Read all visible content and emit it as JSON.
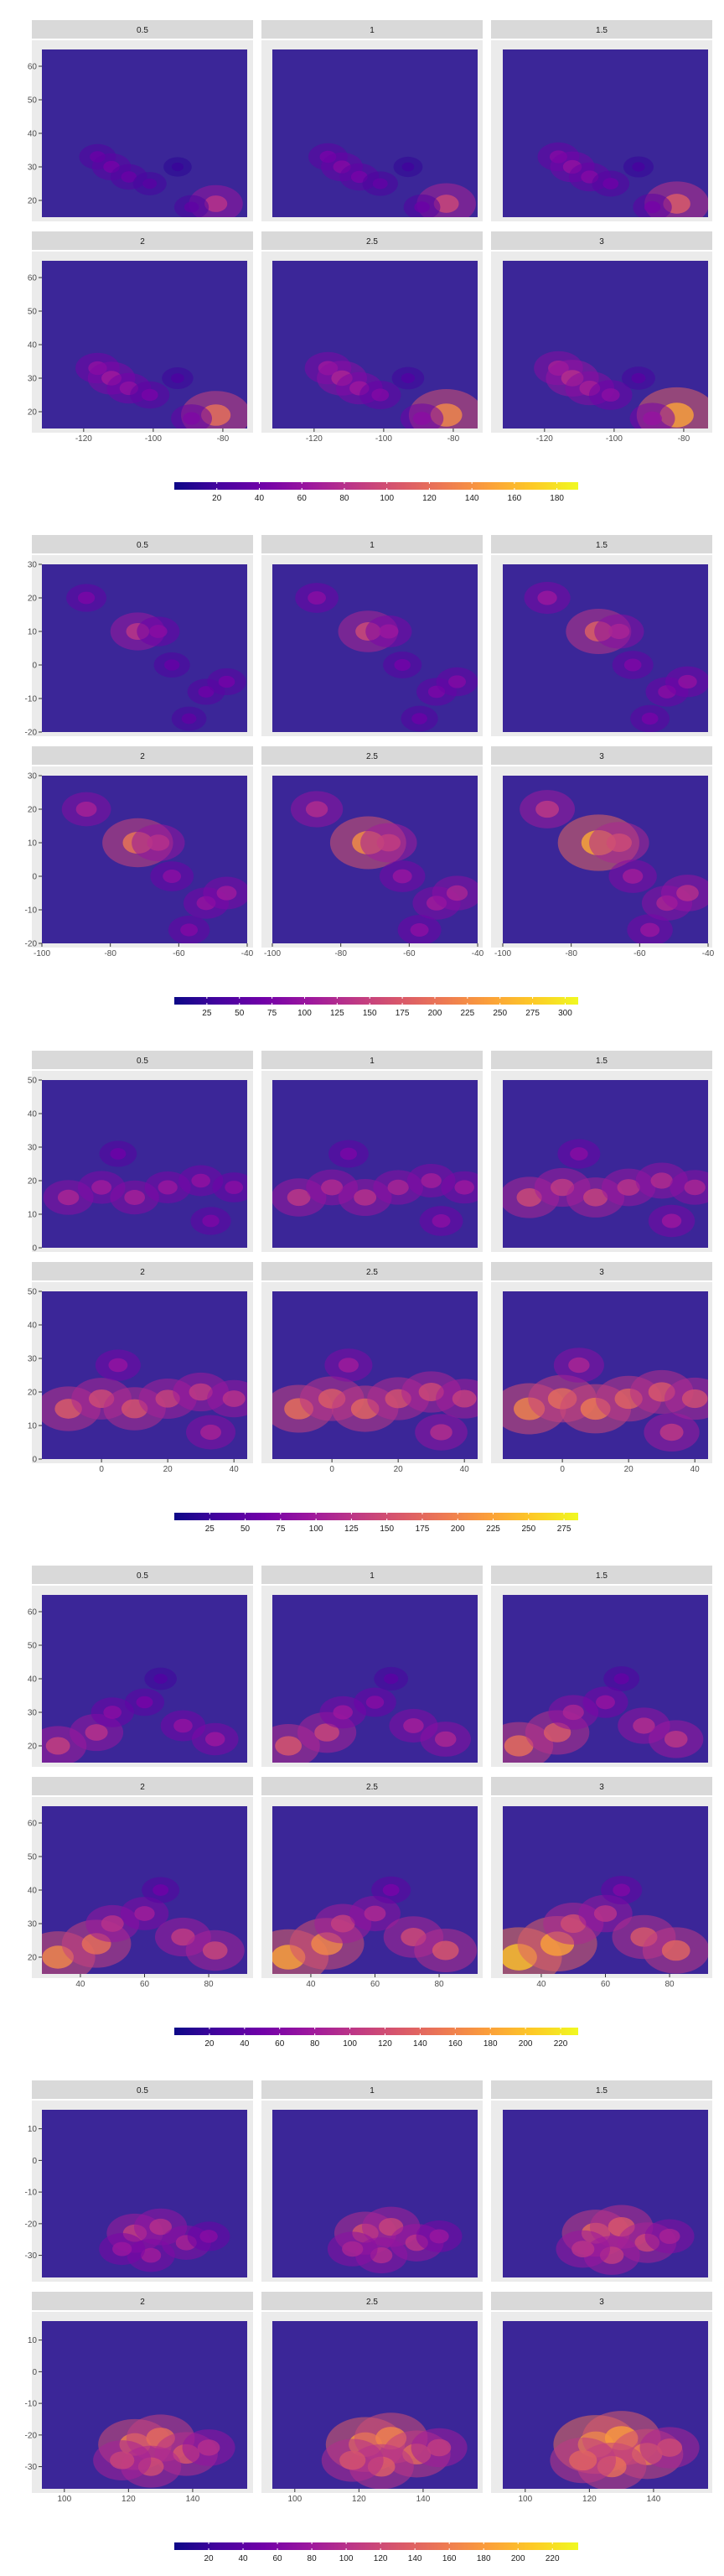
{
  "colors": {
    "panel_background": "#ebebeb",
    "strip_background": "#d9d9d9",
    "gridline": "#ffffff",
    "low": "#3b2698",
    "colorscale": [
      "#0d0887",
      "#46039f",
      "#7201a8",
      "#9c179e",
      "#bd3786",
      "#d8576b",
      "#ed7953",
      "#fb9f3a",
      "#fdca26",
      "#f0f921"
    ]
  },
  "chart_data": [
    {
      "type": "heatmap",
      "region_panel_labels": [
        "0.5",
        "1",
        "1.5",
        "2",
        "2.5",
        "3"
      ],
      "x_ticks": [
        -120,
        -100,
        -80
      ],
      "y_ticks": [
        20,
        30,
        40,
        50,
        60
      ],
      "xlim": [
        -132,
        -73
      ],
      "ylim": [
        15,
        65
      ],
      "colorbar_ticks": [
        "20",
        "40",
        "60",
        "80",
        "100",
        "120",
        "140",
        "160",
        "180"
      ],
      "value_range": [
        0,
        190
      ],
      "hotspots": [
        {
          "lon": -116,
          "lat": 33,
          "value": 70
        },
        {
          "lon": -112,
          "lat": 30,
          "value": 80
        },
        {
          "lon": -107,
          "lat": 27,
          "value": 70
        },
        {
          "lon": -101,
          "lat": 25,
          "value": 55
        },
        {
          "lon": -93,
          "lat": 30,
          "value": 30
        },
        {
          "lon": -82,
          "lat": 19,
          "value": 150
        },
        {
          "lon": -89,
          "lat": 18,
          "value": 60
        }
      ]
    },
    {
      "type": "heatmap",
      "region_panel_labels": [
        "0.5",
        "1",
        "1.5",
        "2",
        "2.5",
        "3"
      ],
      "x_ticks": [
        -100,
        -80,
        -60,
        -40
      ],
      "y_ticks": [
        -20,
        -10,
        0,
        10,
        20,
        30
      ],
      "xlim": [
        -100,
        -40
      ],
      "ylim": [
        -20,
        30
      ],
      "colorbar_ticks": [
        "25",
        "50",
        "75",
        "100",
        "125",
        "150",
        "175",
        "200",
        "225",
        "250",
        "275",
        "300"
      ],
      "value_range": [
        0,
        310
      ],
      "hotspots": [
        {
          "lon": -87,
          "lat": 20,
          "value": 140
        },
        {
          "lon": -72,
          "lat": 10,
          "value": 250
        },
        {
          "lon": -66,
          "lat": 10,
          "value": 160
        },
        {
          "lon": -62,
          "lat": 0,
          "value": 110
        },
        {
          "lon": -52,
          "lat": -8,
          "value": 120
        },
        {
          "lon": -46,
          "lat": -5,
          "value": 130
        },
        {
          "lon": -57,
          "lat": -16,
          "value": 100
        }
      ]
    },
    {
      "type": "heatmap",
      "region_panel_labels": [
        "0.5",
        "1",
        "1.5",
        "2",
        "2.5",
        "3"
      ],
      "x_ticks": [
        0,
        20,
        40
      ],
      "y_ticks": [
        0,
        10,
        20,
        30,
        40,
        50
      ],
      "xlim": [
        -18,
        44
      ],
      "ylim": [
        0,
        50
      ],
      "colorbar_ticks": [
        "25",
        "50",
        "75",
        "100",
        "125",
        "150",
        "175",
        "200",
        "225",
        "250",
        "275"
      ],
      "value_range": [
        0,
        285
      ],
      "hotspots": [
        {
          "lon": -10,
          "lat": 15,
          "value": 200
        },
        {
          "lon": 0,
          "lat": 18,
          "value": 180
        },
        {
          "lon": 10,
          "lat": 15,
          "value": 190
        },
        {
          "lon": 20,
          "lat": 18,
          "value": 170
        },
        {
          "lon": 30,
          "lat": 20,
          "value": 160
        },
        {
          "lon": 40,
          "lat": 18,
          "value": 150
        },
        {
          "lon": 5,
          "lat": 28,
          "value": 110
        },
        {
          "lon": 33,
          "lat": 8,
          "value": 130
        }
      ]
    },
    {
      "type": "heatmap",
      "region_panel_labels": [
        "0.5",
        "1",
        "1.5",
        "2",
        "2.5",
        "3"
      ],
      "x_ticks": [
        40,
        60,
        80
      ],
      "y_ticks": [
        20,
        30,
        40,
        50,
        60
      ],
      "xlim": [
        28,
        92
      ],
      "ylim": [
        15,
        65
      ],
      "colorbar_ticks": [
        "20",
        "40",
        "60",
        "80",
        "100",
        "120",
        "140",
        "160",
        "180",
        "200",
        "220"
      ],
      "value_range": [
        0,
        230
      ],
      "hotspots": [
        {
          "lon": 33,
          "lat": 20,
          "value": 200
        },
        {
          "lon": 45,
          "lat": 24,
          "value": 180
        },
        {
          "lon": 50,
          "lat": 30,
          "value": 120
        },
        {
          "lon": 60,
          "lat": 33,
          "value": 100
        },
        {
          "lon": 72,
          "lat": 26,
          "value": 130
        },
        {
          "lon": 82,
          "lat": 22,
          "value": 140
        },
        {
          "lon": 65,
          "lat": 40,
          "value": 60
        }
      ]
    },
    {
      "type": "heatmap",
      "region_panel_labels": [
        "0.5",
        "1",
        "1.5",
        "2",
        "2.5",
        "3"
      ],
      "x_ticks": [
        100,
        120,
        140
      ],
      "y_ticks": [
        -30,
        -20,
        -10,
        0,
        10
      ],
      "xlim": [
        93,
        157
      ],
      "ylim": [
        -37,
        16
      ],
      "colorbar_ticks": [
        "20",
        "40",
        "60",
        "80",
        "100",
        "120",
        "140",
        "160",
        "180",
        "200",
        "220"
      ],
      "value_range": [
        0,
        235
      ],
      "hotspots": [
        {
          "lon": 122,
          "lat": -23,
          "value": 200
        },
        {
          "lon": 130,
          "lat": -21,
          "value": 180
        },
        {
          "lon": 138,
          "lat": -26,
          "value": 160
        },
        {
          "lon": 145,
          "lat": -24,
          "value": 120
        },
        {
          "lon": 127,
          "lat": -30,
          "value": 150
        },
        {
          "lon": 118,
          "lat": -28,
          "value": 140
        }
      ]
    }
  ]
}
